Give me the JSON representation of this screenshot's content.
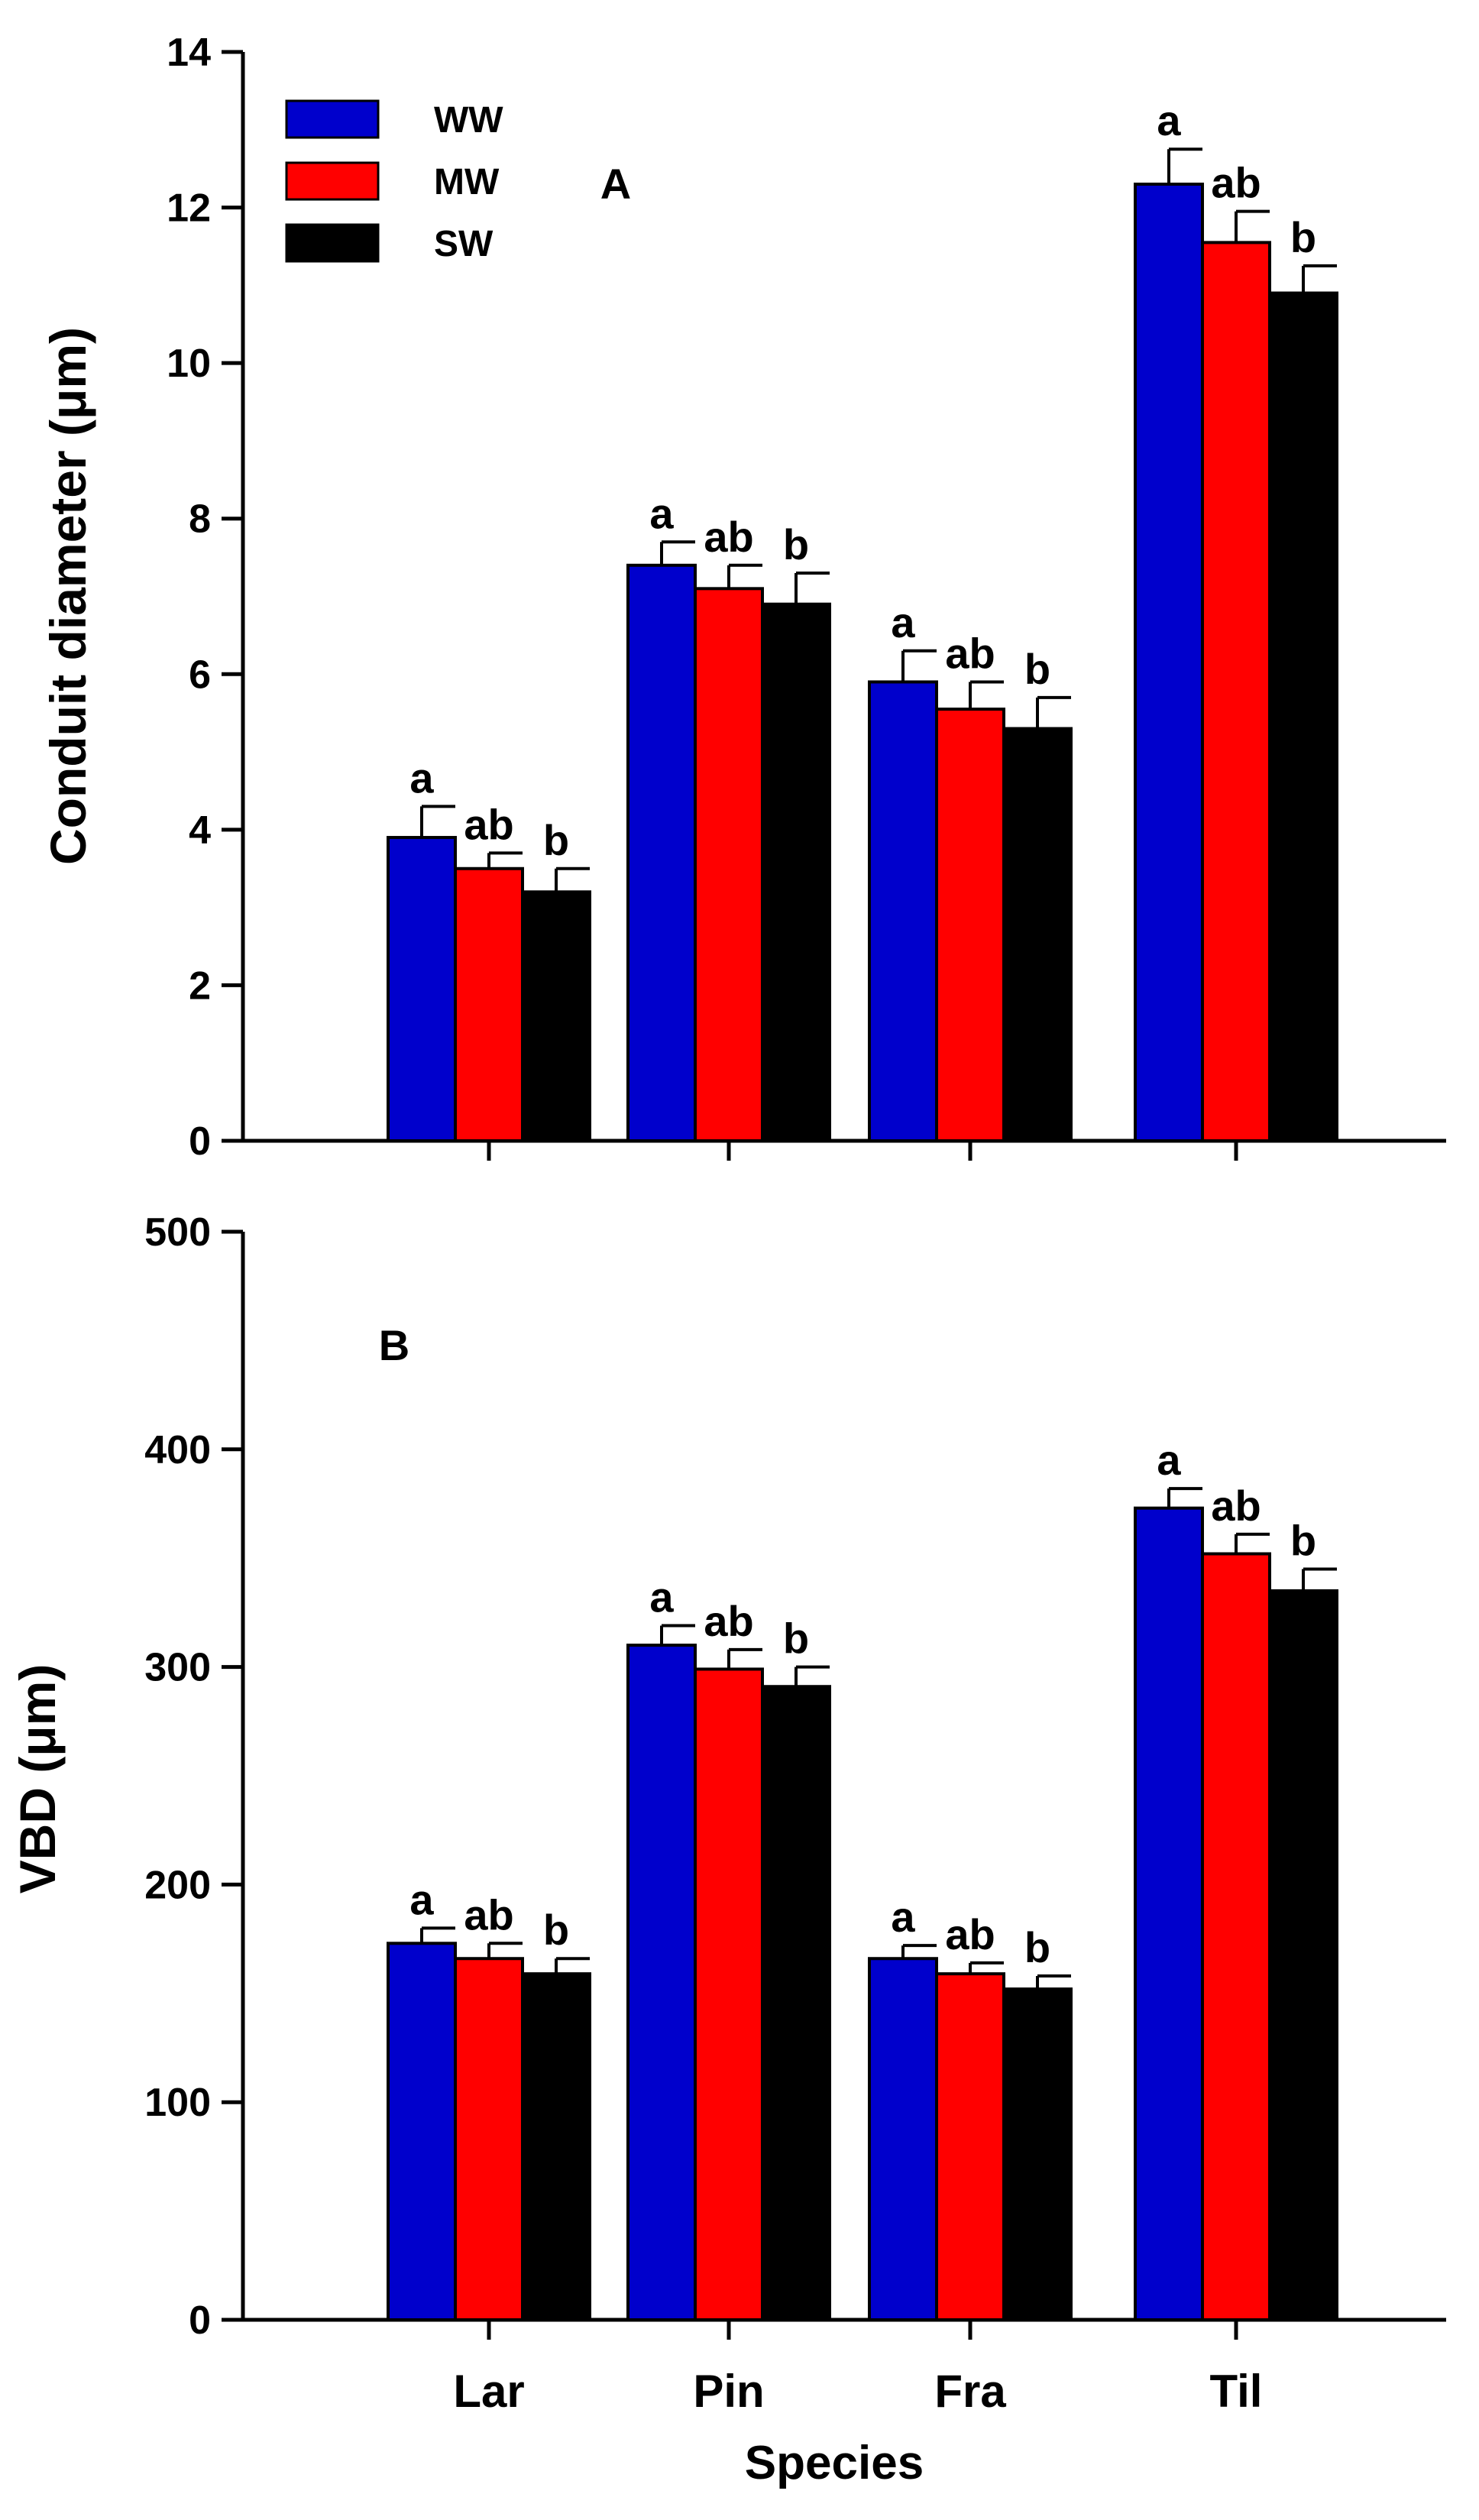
{
  "chart_data": [
    {
      "type": "bar",
      "panel_label": "A",
      "categories": [
        "Lar",
        "Pin",
        "Fra",
        "Til"
      ],
      "ylabel": "Conduit diameter (μm)",
      "xlabel": "",
      "ylim": [
        0,
        14
      ],
      "yticks": [
        0,
        2,
        4,
        6,
        8,
        10,
        12,
        14
      ],
      "grid": false,
      "legend_position": "top-left",
      "series": [
        {
          "name": "WW",
          "color": "#0000cc",
          "values": [
            3.9,
            7.4,
            5.9,
            12.3
          ],
          "errors": [
            0.4,
            0.3,
            0.4,
            0.45
          ],
          "letters": [
            "a",
            "a",
            "a",
            "a"
          ]
        },
        {
          "name": "MW",
          "color": "#ff0000",
          "values": [
            3.5,
            7.1,
            5.55,
            11.55
          ],
          "errors": [
            0.2,
            0.3,
            0.35,
            0.4
          ],
          "letters": [
            "ab",
            "ab",
            "ab",
            "ab"
          ]
        },
        {
          "name": "SW",
          "color": "#000000",
          "values": [
            3.2,
            6.9,
            5.3,
            10.9
          ],
          "errors": [
            0.3,
            0.4,
            0.4,
            0.35
          ],
          "letters": [
            "b",
            "b",
            "b",
            "b"
          ]
        }
      ]
    },
    {
      "type": "bar",
      "panel_label": "B",
      "categories": [
        "Lar",
        "Pin",
        "Fra",
        "Til"
      ],
      "ylabel": "VBD (μm)",
      "xlabel": "Species",
      "ylim": [
        0,
        500
      ],
      "yticks": [
        0,
        100,
        200,
        300,
        400,
        500
      ],
      "grid": false,
      "series": [
        {
          "name": "WW",
          "color": "#0000cc",
          "values": [
            173,
            310,
            166,
            373
          ],
          "errors": [
            7,
            9,
            6,
            9
          ],
          "letters": [
            "a",
            "a",
            "a",
            "a"
          ]
        },
        {
          "name": "MW",
          "color": "#ff0000",
          "values": [
            166,
            299,
            159,
            352
          ],
          "errors": [
            7,
            9,
            5,
            9
          ],
          "letters": [
            "ab",
            "ab",
            "ab",
            "ab"
          ]
        },
        {
          "name": "SW",
          "color": "#000000",
          "values": [
            159,
            291,
            152,
            335
          ],
          "errors": [
            7,
            9,
            6,
            10
          ],
          "letters": [
            "b",
            "b",
            "b",
            "b"
          ]
        }
      ]
    }
  ]
}
